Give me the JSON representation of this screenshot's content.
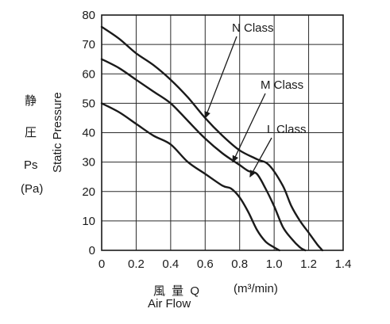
{
  "chart_data": {
    "type": "line",
    "title": "",
    "xlabel_cjk": "風 量 Q",
    "xlabel_unit": "(m³/min)",
    "xlabel_en": "Air Flow",
    "ylabel_cjk_1": "静",
    "ylabel_cjk_2": "圧",
    "ylabel_sym": "Ps",
    "ylabel_unit": "(Pa)",
    "ylabel_en": "Static Pressure",
    "xlim": [
      0,
      1.4
    ],
    "ylim": [
      0,
      80
    ],
    "xticks": [
      "0",
      "0.2",
      "0.4",
      "0.6",
      "0.8",
      "1.0",
      "1.2",
      "1.4"
    ],
    "yticks": [
      "0",
      "10",
      "20",
      "30",
      "40",
      "50",
      "60",
      "70",
      "80"
    ],
    "grid": true,
    "series": [
      {
        "name": "N Class",
        "x": [
          0,
          0.1,
          0.2,
          0.3,
          0.4,
          0.5,
          0.6,
          0.7,
          0.8,
          0.9,
          0.97,
          1.05,
          1.1,
          1.15,
          1.2,
          1.25,
          1.28
        ],
        "y": [
          76,
          72,
          67,
          63,
          58,
          52,
          45,
          39,
          34,
          31,
          29,
          22,
          15,
          10,
          6,
          2,
          0
        ]
      },
      {
        "name": "M Class",
        "x": [
          0,
          0.1,
          0.2,
          0.3,
          0.4,
          0.5,
          0.6,
          0.7,
          0.8,
          0.85,
          0.9,
          0.95,
          1.0,
          1.05,
          1.1,
          1.15,
          1.18
        ],
        "y": [
          65,
          62,
          58,
          54,
          50,
          44,
          38,
          33,
          29,
          27,
          26,
          21,
          15,
          8,
          4,
          1,
          0
        ]
      },
      {
        "name": "L Class",
        "x": [
          0,
          0.1,
          0.2,
          0.3,
          0.4,
          0.5,
          0.6,
          0.7,
          0.75,
          0.8,
          0.85,
          0.9,
          0.95,
          1.0,
          1.03
        ],
        "y": [
          50,
          47,
          43,
          39,
          36,
          30,
          26,
          22,
          21,
          18,
          13,
          7,
          3,
          1,
          0
        ]
      }
    ],
    "annotations": [
      {
        "text": "N Class",
        "arrow_to": [
          0.6,
          45
        ]
      },
      {
        "text": "M Class",
        "arrow_to": [
          0.76,
          30
        ]
      },
      {
        "text": "L Class",
        "arrow_to": [
          0.86,
          25
        ]
      }
    ]
  }
}
